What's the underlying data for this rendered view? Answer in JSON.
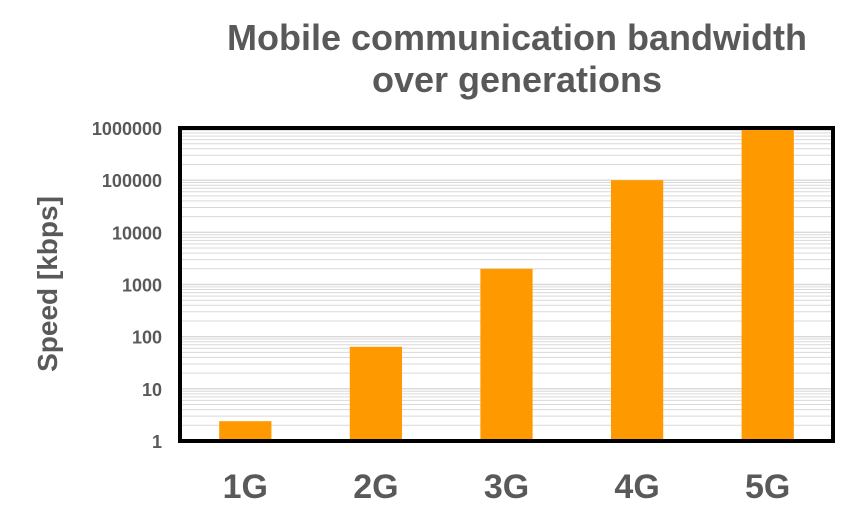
{
  "chart_data": {
    "type": "bar",
    "title_lines": [
      "Mobile communication bandwidth",
      "over generations"
    ],
    "xlabel": "",
    "ylabel": "Speed [kbps]",
    "y_scale": "log",
    "ylim": [
      1,
      1000000
    ],
    "y_ticks": [
      "1",
      "10",
      "100",
      "1000",
      "10000",
      "100000",
      "1000000"
    ],
    "categories": [
      "1G",
      "2G",
      "3G",
      "4G",
      "5G"
    ],
    "values": [
      2.4,
      64,
      2000,
      100000,
      1000000
    ],
    "grid": true,
    "legend": "none",
    "bar_color": "#FF9900",
    "gridline_color": "#D9D9D9",
    "frame_color": "#000000",
    "text_color": "#595959"
  }
}
